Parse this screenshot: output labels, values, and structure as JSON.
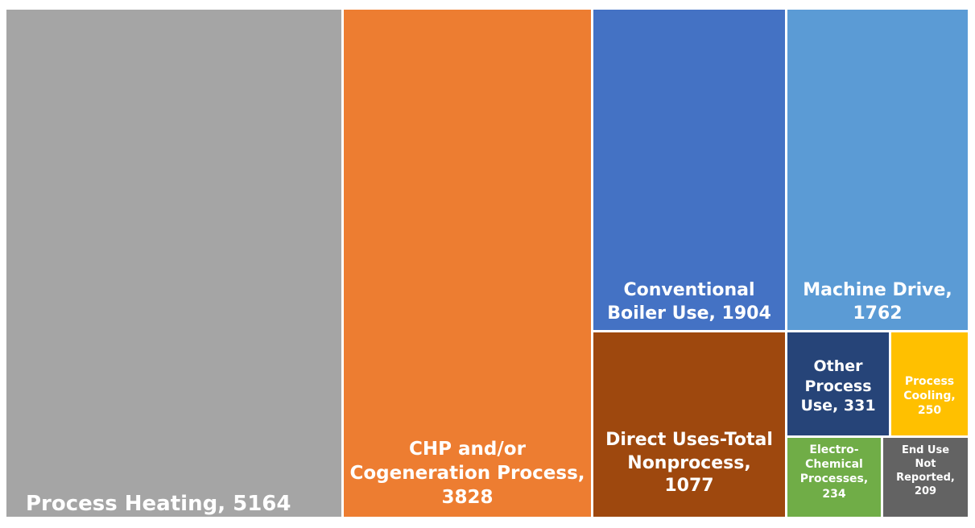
{
  "chart_data": {
    "type": "treemap",
    "title": "",
    "items": [
      {
        "label": "Process Heating, 5164",
        "name": "Process Heating",
        "value": 5164,
        "color": "#A5A5A5",
        "text_color": "#FFFFFF"
      },
      {
        "label": "CHP and/or\nCogeneration Process,\n3828",
        "name": "CHP and/or Cogeneration Process",
        "value": 3828,
        "color": "#ED7D31",
        "text_color": "#FFFFFF"
      },
      {
        "label": "Conventional\nBoiler Use, 1904",
        "name": "Conventional Boiler Use",
        "value": 1904,
        "color": "#4472C4",
        "text_color": "#FFFFFF"
      },
      {
        "label": "Machine Drive,\n1762",
        "name": "Machine Drive",
        "value": 1762,
        "color": "#5B9BD5",
        "text_color": "#FFFFFF"
      },
      {
        "label": "Direct Uses-Total\nNonprocess,\n1077",
        "name": "Direct Uses-Total Nonprocess",
        "value": 1077,
        "color": "#9E480E",
        "text_color": "#FFFFFF"
      },
      {
        "label": "Other\nProcess\nUse, 331",
        "name": "Other Process Use",
        "value": 331,
        "color": "#264478",
        "text_color": "#FFFFFF"
      },
      {
        "label": "Process\nCooling,\n250",
        "name": "Process Cooling",
        "value": 250,
        "color": "#FFC000",
        "text_color": "#FFFFFF"
      },
      {
        "label": "Electro-\nChemical\nProcesses,\n234",
        "name": "Electro-Chemical Processes",
        "value": 234,
        "color": "#70AD47",
        "text_color": "#FFFFFF"
      },
      {
        "label": "End Use\nNot\nReported,\n209",
        "name": "End Use Not Reported",
        "value": 209,
        "color": "#636363",
        "text_color": "#FFFFFF"
      }
    ]
  }
}
